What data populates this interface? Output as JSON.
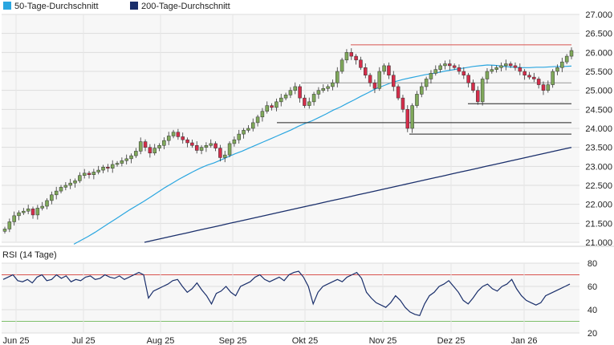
{
  "legend": [
    {
      "label": "50-Tage-Durchschnitt",
      "color": "#2aa6e0"
    },
    {
      "label": "200-Tage-Durchschnitt",
      "color": "#1a2f6b"
    }
  ],
  "rsi_label": "RSI (14 Tage)",
  "colors": {
    "up": "#7fa85a",
    "down": "#d42d4a",
    "sma50": "#2aa6e0",
    "sma200": "#1a2f6b",
    "resistance": "#d9534f",
    "support": "#222222",
    "rsi": "#1a2f6b",
    "rsi_overbought": "#d9534f",
    "rsi_oversold": "#7fbf6a"
  },
  "chart_data": [
    {
      "type": "candlestick",
      "title": "",
      "y_ticks": [
        "27.000",
        "26.500",
        "26.000",
        "25.500",
        "25.000",
        "24.500",
        "24.000",
        "23.500",
        "23.000",
        "22.500",
        "22.000",
        "21.500",
        "21.000"
      ],
      "ylim": [
        21000,
        27000
      ],
      "x_ticks": [
        "Jun 25",
        "Jul 25",
        "Aug 25",
        "Sep 25",
        "Okt 25",
        "Nov 25",
        "Dez 25",
        "Jan 26"
      ],
      "close_series": [
        21350,
        21540,
        21700,
        21780,
        21820,
        21880,
        21720,
        21900,
        21950,
        22100,
        22250,
        22350,
        22450,
        22500,
        22560,
        22620,
        22760,
        22820,
        22780,
        22850,
        22900,
        22980,
        22950,
        23050,
        23080,
        23150,
        23200,
        23280,
        23400,
        23650,
        23500,
        23350,
        23480,
        23550,
        23680,
        23800,
        23900,
        23780,
        23700,
        23620,
        23550,
        23420,
        23500,
        23550,
        23600,
        23480,
        23230,
        23300,
        23600,
        23700,
        23850,
        23950,
        24000,
        24150,
        24300,
        24450,
        24600,
        24550,
        24700,
        24800,
        24880,
        25000,
        25100,
        24800,
        24600,
        24700,
        24900,
        25000,
        25050,
        25100,
        25200,
        25500,
        25800,
        26000,
        25900,
        25800,
        25600,
        25400,
        25200,
        25050,
        25500,
        25650,
        25400,
        25100,
        24800,
        24500,
        24000,
        24600,
        24900,
        25100,
        25300,
        25450,
        25550,
        25650,
        25700,
        25650,
        25600,
        25500,
        25400,
        25200,
        25000,
        24700,
        25300,
        25500,
        25550,
        25600,
        25650,
        25700,
        25650,
        25600,
        25500,
        25400,
        25350,
        25300,
        25150,
        25000,
        25150,
        25500,
        25600,
        25750,
        25900,
        26050
      ],
      "sma50": [
        20950,
        21050,
        21150,
        21260,
        21380,
        21500,
        21620,
        21740,
        21860,
        21970,
        22080,
        22200,
        22320,
        22440,
        22550,
        22660,
        22760,
        22860,
        22950,
        23030,
        23090,
        23170,
        23250,
        23330,
        23400,
        23480,
        23560,
        23640,
        23720,
        23800,
        23880,
        23960,
        24050,
        24130,
        24200,
        24290,
        24380,
        24480,
        24560,
        24660,
        24750,
        24850,
        24940,
        25040,
        25110,
        25180,
        25240,
        25290,
        25330,
        25370,
        25410,
        25440,
        25470,
        25510,
        25540,
        25570,
        25600,
        25630,
        25650,
        25670,
        25660,
        25640,
        25620,
        25610,
        25600,
        25600,
        25610,
        25610,
        25620,
        25630,
        25630,
        25640
      ],
      "sma200": [
        21000,
        21050,
        21100,
        21150,
        21200,
        21250,
        21300,
        21350,
        21400,
        21450,
        21500,
        21550,
        21600,
        21650,
        21700,
        21750,
        21800,
        21850,
        21900,
        21950,
        22000,
        22050,
        22100,
        22150,
        22200,
        22250,
        22300,
        22350,
        22400,
        22450,
        22500,
        22550,
        22600,
        22650,
        22700,
        22750,
        22800,
        22850,
        22900,
        22950,
        23000,
        23050,
        23100,
        23150,
        23200,
        23250,
        23300,
        23350,
        23400,
        23450,
        23500
      ],
      "resistance": 26200,
      "supports": [
        25200,
        24650,
        24150,
        23850
      ],
      "legend": [
        "50-Tage-Durchschnitt",
        "200-Tage-Durchschnitt"
      ]
    },
    {
      "type": "line",
      "title": "RSI (14 Tage)",
      "y_ticks": [
        "80",
        "60",
        "40",
        "20"
      ],
      "ylim": [
        20,
        80
      ],
      "reference_lines": [
        70,
        30
      ],
      "values": [
        66,
        68,
        70,
        65,
        64,
        66,
        63,
        68,
        70,
        65,
        66,
        70,
        67,
        69,
        64,
        66,
        65,
        68,
        69,
        66,
        67,
        70,
        68,
        67,
        69,
        66,
        68,
        70,
        72,
        70,
        50,
        56,
        58,
        60,
        62,
        65,
        66,
        60,
        55,
        58,
        63,
        57,
        52,
        45,
        54,
        56,
        60,
        55,
        52,
        60,
        62,
        64,
        68,
        70,
        66,
        64,
        66,
        68,
        65,
        70,
        72,
        73,
        68,
        60,
        45,
        55,
        60,
        62,
        64,
        66,
        64,
        68,
        70,
        72,
        67,
        55,
        50,
        46,
        44,
        42,
        46,
        52,
        48,
        42,
        38,
        36,
        35,
        45,
        52,
        55,
        60,
        62,
        65,
        60,
        55,
        48,
        45,
        50,
        56,
        60,
        62,
        58,
        56,
        60,
        62,
        66,
        58,
        52,
        48,
        46,
        44,
        46,
        52,
        54,
        56,
        58,
        60,
        62
      ]
    }
  ]
}
